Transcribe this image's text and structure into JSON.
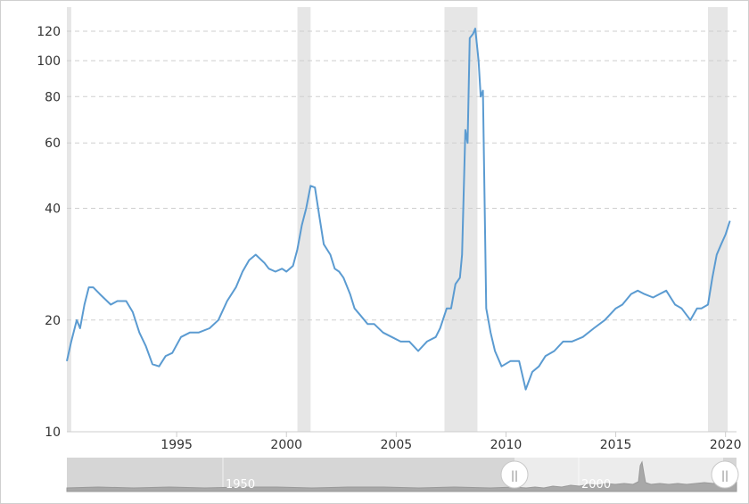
{
  "chart_data": {
    "type": "line",
    "title": "",
    "xlabel": "",
    "ylabel": "",
    "y_scale": "log",
    "xlim": [
      1990.0,
      2020.5
    ],
    "ylim": [
      10,
      128
    ],
    "y_ticks": [
      10,
      20,
      40,
      60,
      80,
      100,
      120
    ],
    "y_tick_labels": [
      "10",
      "20",
      "40",
      "60",
      "80",
      "100",
      "120"
    ],
    "x_ticks": [
      1995,
      2000,
      2005,
      2010,
      2015,
      2020
    ],
    "x_tick_labels": [
      "1995",
      "2000",
      "2005",
      "2010",
      "2015",
      "2020"
    ],
    "grid": "horizontal dashed",
    "series_color": "#5b9bd1",
    "recession_color": "#e6e6e6",
    "recession_bands": [
      {
        "start": 1990.0,
        "end": 1990.2
      },
      {
        "start": 2000.5,
        "end": 2001.1
      },
      {
        "start": 2007.2,
        "end": 2008.7
      },
      {
        "start": 2019.2,
        "end": 2020.1
      }
    ],
    "series": [
      {
        "x": [
          1990.0,
          1990.2,
          1990.45,
          1990.6,
          1990.8,
          1991.0,
          1991.2,
          1991.5,
          1992.0,
          1992.3,
          1992.7,
          1993.0,
          1993.3,
          1993.6,
          1993.9,
          1994.2,
          1994.5,
          1994.8,
          1995.2,
          1995.6,
          1996.0,
          1996.5,
          1996.9,
          1997.3,
          1997.7,
          1998.0,
          1998.3,
          1998.6,
          1999.0,
          1999.2,
          1999.5,
          1999.8,
          2000.0,
          2000.3,
          2000.5,
          2000.7,
          2000.9,
          2001.1,
          2001.3,
          2001.5,
          2001.7,
          2002.0,
          2002.2,
          2002.4,
          2002.6,
          2002.9,
          2003.1,
          2003.4,
          2003.7,
          2004.0,
          2004.4,
          2004.8,
          2005.2,
          2005.6,
          2006.0,
          2006.4,
          2006.8,
          2007.0,
          2007.3,
          2007.5,
          2007.7,
          2007.9,
          2008.0,
          2008.15,
          2008.25,
          2008.35,
          2008.5,
          2008.6,
          2008.75,
          2008.85,
          2008.95,
          2009.1,
          2009.3,
          2009.5,
          2009.8,
          2010.2,
          2010.6,
          2010.9,
          2011.2,
          2011.5,
          2011.8,
          2012.2,
          2012.6,
          2013.0,
          2013.5,
          2014.0,
          2014.5,
          2015.0,
          2015.3,
          2015.7,
          2016.0,
          2016.3,
          2016.7,
          2017.0,
          2017.3,
          2017.7,
          2018.0,
          2018.4,
          2018.7,
          2018.9,
          2019.2,
          2019.4,
          2019.6,
          2019.8,
          2020.0,
          2020.2
        ],
        "y": [
          15.5,
          17.5,
          20.0,
          19.0,
          22.0,
          24.5,
          24.5,
          23.5,
          22.0,
          22.5,
          22.5,
          21.0,
          18.5,
          17.0,
          15.2,
          15.0,
          16.0,
          16.3,
          18.0,
          18.5,
          18.5,
          19.0,
          20.0,
          22.5,
          24.5,
          27.0,
          29.0,
          30.0,
          28.5,
          27.5,
          27.0,
          27.5,
          27.0,
          28.0,
          31.0,
          36.0,
          40.0,
          46.0,
          45.5,
          38.0,
          32.0,
          30.0,
          27.5,
          27.0,
          26.0,
          23.5,
          21.5,
          20.5,
          19.5,
          19.5,
          18.5,
          18.0,
          17.5,
          17.5,
          16.5,
          17.5,
          18.0,
          19.0,
          21.5,
          21.5,
          25.0,
          26.0,
          30.0,
          65.0,
          60.0,
          115.0,
          118.0,
          122.0,
          100.0,
          80.0,
          83.0,
          21.5,
          18.5,
          16.5,
          15.0,
          15.5,
          15.5,
          13.0,
          14.5,
          15.0,
          16.0,
          16.5,
          17.5,
          17.5,
          18.0,
          19.0,
          20.0,
          21.5,
          22.0,
          23.5,
          24.0,
          23.5,
          23.0,
          23.5,
          24.0,
          22.0,
          21.5,
          20.0,
          21.5,
          21.5,
          22.0,
          26.0,
          30.0,
          32.0,
          34.0,
          37.0
        ]
      }
    ]
  },
  "navigator": {
    "labels": [
      "1950",
      "2000"
    ],
    "handle_glyph": "||"
  }
}
